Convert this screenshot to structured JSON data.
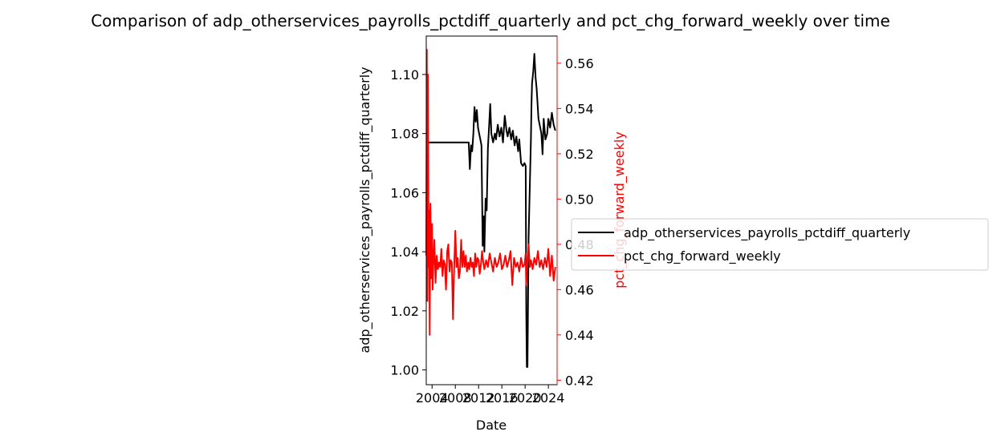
{
  "chart_data": {
    "type": "line",
    "title": "Comparison of adp_otherservices_payrolls_pctdiff_quarterly and pct_chg_forward_weekly over time",
    "xlabel": "Date",
    "xlim": [
      2003.0,
      2025.5
    ],
    "x_ticks": [
      2004,
      2008,
      2012,
      2016,
      2020,
      2024
    ],
    "x_tick_labels": [
      "2004",
      "2008",
      "2012",
      "2016",
      "2020",
      "2024"
    ],
    "legend_position": "center-right outside",
    "grid": false,
    "left_axis": {
      "label": "adp_otherservices_payrolls_pctdiff_quarterly",
      "ylim": [
        0.995,
        1.113
      ],
      "ticks": [
        1.0,
        1.02,
        1.04,
        1.06,
        1.08,
        1.1
      ],
      "tick_labels": [
        "1.00",
        "1.02",
        "1.04",
        "1.06",
        "1.08",
        "1.10"
      ],
      "color": "#000000"
    },
    "right_axis": {
      "label": "pct_chg_forward_weekly",
      "ylim": [
        0.418,
        0.572
      ],
      "ticks": [
        0.42,
        0.44,
        0.46,
        0.48,
        0.5,
        0.52,
        0.54,
        0.56
      ],
      "tick_labels": [
        "0.42",
        "0.44",
        "0.46",
        "0.48",
        "0.50",
        "0.52",
        "0.54",
        "0.56"
      ],
      "color": "#ff0000"
    },
    "series": [
      {
        "name": "adp_otherservices_payrolls_pctdiff_quarterly",
        "axis": "left",
        "color": "#000000",
        "x": [
          2003.0,
          2006.5,
          2009.5,
          2010.0,
          2010.3,
          2010.5,
          2010.7,
          2010.9,
          2011.1,
          2011.3,
          2011.5,
          2011.7,
          2011.9,
          2012.1,
          2012.3,
          2012.5,
          2012.7,
          2012.9,
          2013.0,
          2013.2,
          2013.4,
          2013.6,
          2013.8,
          2014.0,
          2014.2,
          2014.5,
          2014.8,
          2015.0,
          2015.3,
          2015.6,
          2015.9,
          2016.2,
          2016.5,
          2016.8,
          2017.0,
          2017.3,
          2017.6,
          2017.9,
          2018.2,
          2018.5,
          2018.8,
          2019.0,
          2019.3,
          2019.6,
          2019.9,
          2020.1,
          2020.2,
          2020.3,
          2020.4,
          2020.6,
          2020.8,
          2021.0,
          2021.1,
          2021.2,
          2021.4,
          2021.6,
          2021.8,
          2022.0,
          2022.3,
          2022.6,
          2022.8,
          2023.0,
          2023.2,
          2023.5,
          2023.8,
          2024.0,
          2024.3,
          2024.6,
          2024.9,
          2025.2
        ],
        "y": [
          1.077,
          1.077,
          1.077,
          1.077,
          1.077,
          1.068,
          1.076,
          1.074,
          1.08,
          1.089,
          1.084,
          1.088,
          1.082,
          1.08,
          1.078,
          1.076,
          1.042,
          1.052,
          1.04,
          1.058,
          1.054,
          1.075,
          1.082,
          1.09,
          1.08,
          1.077,
          1.08,
          1.078,
          1.083,
          1.079,
          1.082,
          1.077,
          1.086,
          1.081,
          1.079,
          1.082,
          1.078,
          1.081,
          1.076,
          1.079,
          1.074,
          1.078,
          1.07,
          1.069,
          1.07,
          1.069,
          1.02,
          1.001,
          1.001,
          1.045,
          1.062,
          1.078,
          1.09,
          1.097,
          1.101,
          1.107,
          1.099,
          1.095,
          1.085,
          1.082,
          1.08,
          1.073,
          1.085,
          1.078,
          1.08,
          1.085,
          1.082,
          1.087,
          1.083,
          1.081
        ]
      },
      {
        "name": "pct_chg_forward_weekly",
        "axis": "right",
        "color": "#ff0000",
        "x": [
          2003.0,
          2003.1,
          2003.2,
          2003.3,
          2003.4,
          2003.5,
          2003.6,
          2003.7,
          2003.8,
          2003.9,
          2004.0,
          2004.1,
          2004.2,
          2004.4,
          2004.6,
          2004.8,
          2005.0,
          2005.2,
          2005.4,
          2005.6,
          2005.8,
          2006.0,
          2006.2,
          2006.4,
          2006.6,
          2006.8,
          2007.0,
          2007.2,
          2007.4,
          2007.6,
          2007.8,
          2008.0,
          2008.2,
          2008.4,
          2008.6,
          2008.8,
          2009.0,
          2009.2,
          2009.4,
          2009.6,
          2009.8,
          2010.0,
          2010.2,
          2010.4,
          2010.6,
          2010.8,
          2011.0,
          2011.2,
          2011.4,
          2011.6,
          2011.8,
          2012.0,
          2012.2,
          2012.4,
          2012.6,
          2012.8,
          2013.0,
          2013.3,
          2013.6,
          2013.9,
          2014.2,
          2014.5,
          2014.8,
          2015.1,
          2015.4,
          2015.7,
          2016.0,
          2016.3,
          2016.6,
          2016.9,
          2017.2,
          2017.5,
          2017.8,
          2018.1,
          2018.4,
          2018.7,
          2019.0,
          2019.3,
          2019.6,
          2019.9,
          2020.1,
          2020.2,
          2020.3,
          2020.4,
          2020.6,
          2020.8,
          2021.0,
          2021.3,
          2021.6,
          2021.9,
          2022.2,
          2022.5,
          2022.8,
          2023.1,
          2023.4,
          2023.7,
          2024.0,
          2024.3,
          2024.6,
          2024.9,
          2025.2
        ],
        "y": [
          0.475,
          0.566,
          0.455,
          0.555,
          0.47,
          0.495,
          0.44,
          0.498,
          0.48,
          0.465,
          0.489,
          0.46,
          0.47,
          0.482,
          0.463,
          0.475,
          0.469,
          0.472,
          0.47,
          0.478,
          0.466,
          0.473,
          0.471,
          0.46,
          0.477,
          0.48,
          0.468,
          0.473,
          0.472,
          0.447,
          0.47,
          0.486,
          0.47,
          0.474,
          0.465,
          0.468,
          0.482,
          0.47,
          0.477,
          0.47,
          0.475,
          0.468,
          0.472,
          0.469,
          0.474,
          0.47,
          0.472,
          0.466,
          0.476,
          0.47,
          0.474,
          0.473,
          0.467,
          0.471,
          0.477,
          0.472,
          0.469,
          0.473,
          0.47,
          0.476,
          0.472,
          0.468,
          0.474,
          0.47,
          0.472,
          0.476,
          0.469,
          0.471,
          0.475,
          0.47,
          0.473,
          0.477,
          0.462,
          0.474,
          0.47,
          0.472,
          0.468,
          0.474,
          0.47,
          0.471,
          0.476,
          0.462,
          0.466,
          0.471,
          0.48,
          0.47,
          0.473,
          0.469,
          0.474,
          0.471,
          0.477,
          0.47,
          0.473,
          0.469,
          0.474,
          0.47,
          0.478,
          0.466,
          0.475,
          0.464,
          0.47
        ]
      }
    ]
  }
}
